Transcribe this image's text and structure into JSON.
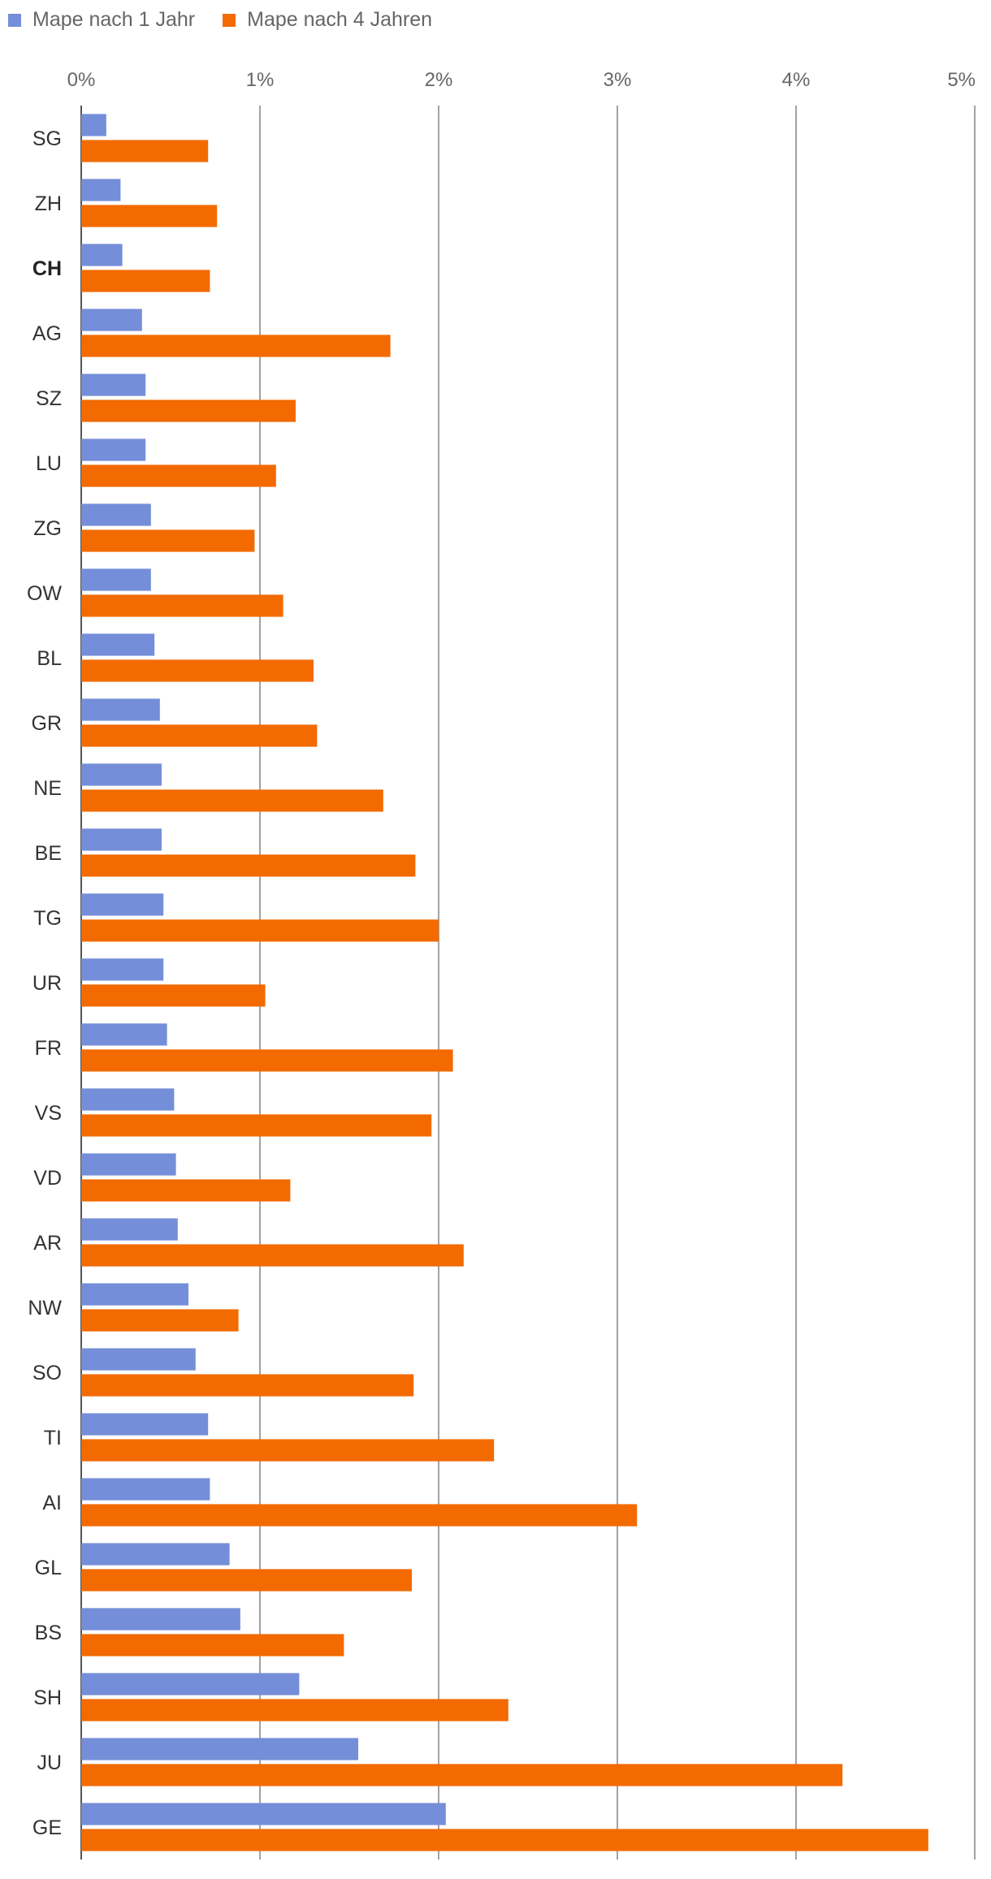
{
  "chart_data": {
    "type": "bar",
    "orientation": "horizontal",
    "title": "",
    "xlabel": "",
    "ylabel": "",
    "xlim": [
      0,
      5
    ],
    "x_ticks": [
      "0%",
      "1%",
      "2%",
      "3%",
      "4%",
      "5%"
    ],
    "grid": true,
    "legend_position": "top-left",
    "highlighted_category": "CH",
    "categories": [
      "SG",
      "ZH",
      "CH",
      "AG",
      "SZ",
      "LU",
      "ZG",
      "OW",
      "BL",
      "GR",
      "NE",
      "BE",
      "TG",
      "UR",
      "FR",
      "VS",
      "VD",
      "AR",
      "NW",
      "SO",
      "TI",
      "AI",
      "GL",
      "BS",
      "SH",
      "JU",
      "GE"
    ],
    "series": [
      {
        "name": "Mape nach 1 Jahr",
        "color": "#758ed9",
        "values": [
          0.14,
          0.22,
          0.23,
          0.34,
          0.36,
          0.36,
          0.39,
          0.39,
          0.41,
          0.44,
          0.45,
          0.45,
          0.46,
          0.46,
          0.48,
          0.52,
          0.53,
          0.54,
          0.6,
          0.64,
          0.71,
          0.72,
          0.83,
          0.89,
          1.22,
          1.55,
          2.04
        ]
      },
      {
        "name": "Mape nach 4 Jahren",
        "color": "#f26a00",
        "values": [
          0.71,
          0.76,
          0.72,
          1.73,
          1.2,
          1.09,
          0.97,
          1.13,
          1.3,
          1.32,
          1.69,
          1.87,
          2.0,
          1.03,
          2.08,
          1.96,
          1.17,
          2.14,
          0.88,
          1.86,
          2.31,
          3.11,
          1.85,
          1.47,
          2.39,
          4.26,
          4.74
        ]
      }
    ]
  }
}
